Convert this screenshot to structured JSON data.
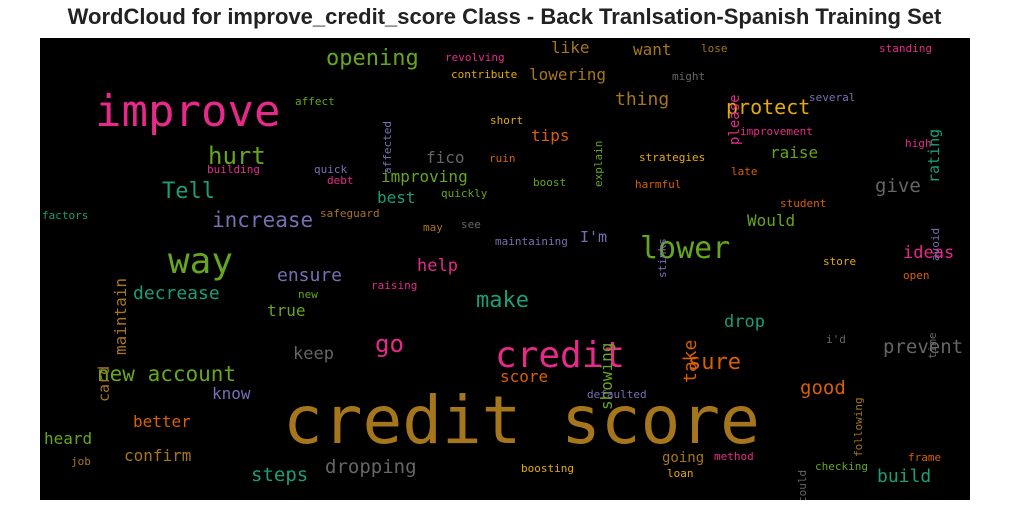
{
  "title": "WordCloud for improve_credit_score Class - Back Tranlsation-Spanish Training Set",
  "colors": {
    "pink": "#e7298a",
    "green": "#66a61e",
    "teal": "#1b9e77",
    "orange": "#d95f02",
    "ochre": "#a6761d",
    "purple": "#7570b3",
    "gold": "#e6ab02",
    "gray": "#666666"
  },
  "words": [
    "credit score",
    "improve",
    "credit",
    "way",
    "lower",
    "hurt",
    "Tell",
    "opening",
    "increase",
    "new account",
    "go",
    "make",
    "sure",
    "protect",
    "thing",
    "tips",
    "like",
    "want",
    "lowering",
    "fico",
    "improving",
    "best",
    "raise",
    "give",
    "Would",
    "ideas",
    "ensure",
    "decrease",
    "maintain",
    "help",
    "take",
    "drop",
    "prevent",
    "dropping",
    "steps",
    "good",
    "build",
    "keep",
    "true",
    "showing",
    "score",
    "better",
    "confirm",
    "heard",
    "know",
    "going",
    "card",
    "rating",
    "please",
    "I'm",
    "revolving",
    "contribute",
    "affect",
    "affected",
    "short",
    "explain",
    "ruin",
    "quick",
    "debt",
    "building",
    "quickly",
    "boost",
    "strategies",
    "harmful",
    "late",
    "student",
    "avoid",
    "high",
    "improvement",
    "several",
    "might",
    "lose",
    "standing",
    "factors",
    "safeguard",
    "may",
    "see",
    "maintaining",
    "stinks",
    "store",
    "open",
    "time",
    "new",
    "raising",
    "i'd",
    "following",
    "defaulted",
    "could",
    "checking",
    "boosting",
    "loan",
    "method",
    "frame",
    "job"
  ]
}
